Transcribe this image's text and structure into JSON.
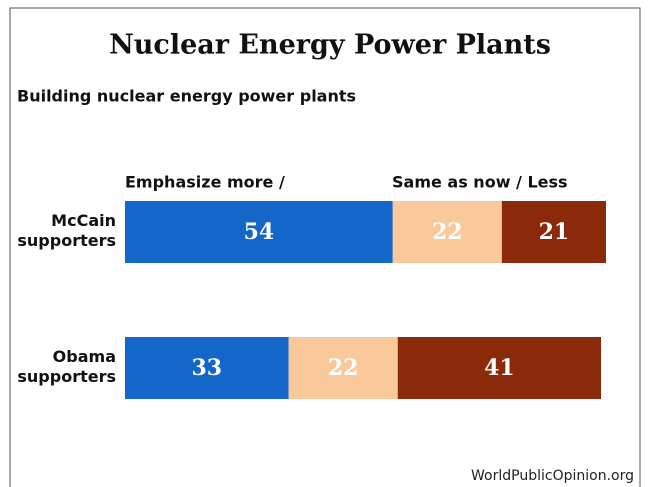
{
  "chart_data": {
    "type": "stacked-bar-horizontal",
    "title": "Nuclear Energy Power Plants",
    "subtitle": "Building nuclear energy power plants",
    "column_labels": [
      "Emphasize more /",
      "Same as now / Less"
    ],
    "categories": [
      "McCain supporters",
      "Obama supporters"
    ],
    "series": [
      {
        "color": "#1466c8",
        "values": [
          54,
          33
        ]
      },
      {
        "color": "#f9c89b",
        "values": [
          22,
          22
        ]
      },
      {
        "color": "#8b2a0a",
        "values": [
          21,
          41
        ]
      }
    ],
    "xlim": [
      0,
      97
    ],
    "source": "WorldPublicOpinion.org"
  }
}
